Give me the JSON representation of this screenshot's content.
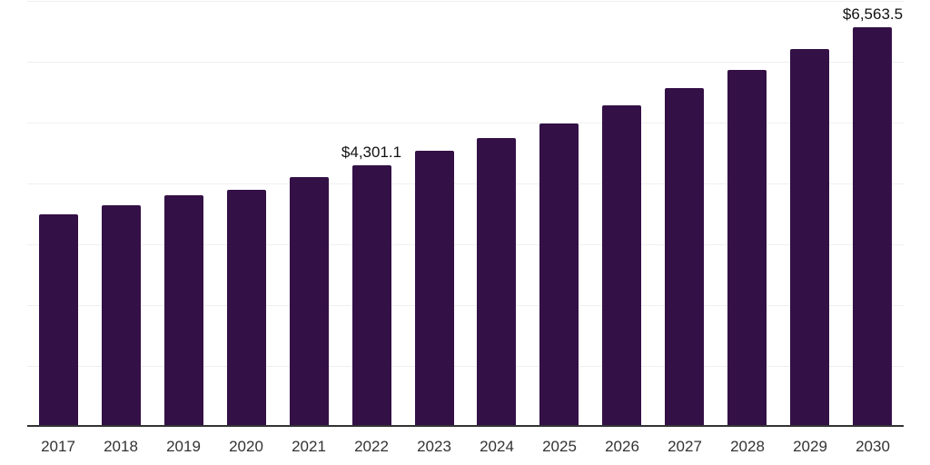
{
  "chart_data": {
    "type": "bar",
    "title": "",
    "xlabel": "",
    "ylabel": "",
    "categories": [
      "2017",
      "2018",
      "2019",
      "2020",
      "2021",
      "2022",
      "2023",
      "2024",
      "2025",
      "2026",
      "2027",
      "2028",
      "2029",
      "2030"
    ],
    "values": [
      3490,
      3640,
      3805,
      3895,
      4100,
      4301.1,
      4535,
      4745,
      4985,
      5280,
      5565,
      5860,
      6205,
      6563.5
    ],
    "value_labels": {
      "2022": "$4,301.1",
      "2030": "$6,563.5"
    },
    "ylim": [
      0,
      7000
    ],
    "gridline_interval": 1000,
    "grid": true,
    "legend": false,
    "y_axis_tick_labels_visible": false,
    "colors": {
      "bar": "#331046",
      "gridline": "#efefef",
      "axis_line": "#333333",
      "tick_label": "#333333",
      "value_label": "#111111",
      "background": "#ffffff"
    }
  },
  "layout_hints": {
    "bar_count": 14,
    "labeled_bars": [
      "2022",
      "2030"
    ]
  }
}
